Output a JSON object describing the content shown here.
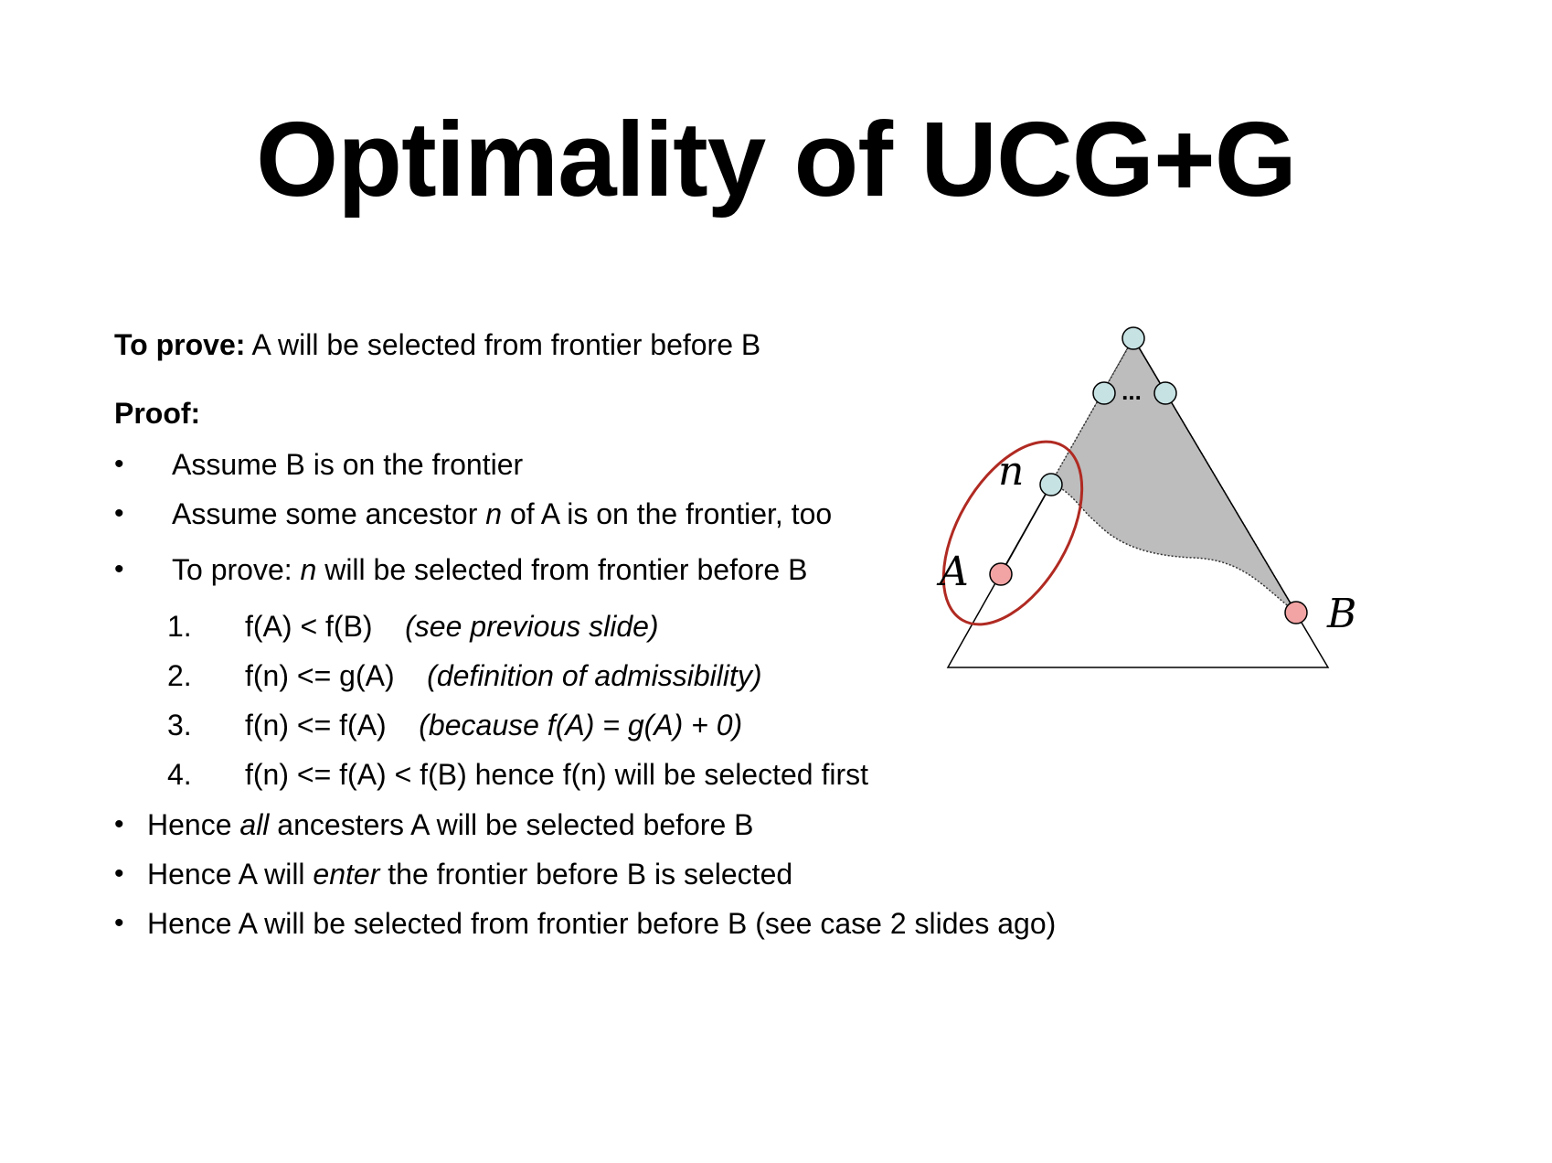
{
  "slide": {
    "title": "Optimality of UCG+G"
  },
  "to_prove": {
    "label": "To prove:",
    "text": " A will be selected from frontier before B"
  },
  "proof_label": "Proof:",
  "bullet_glyph": "•",
  "bullets": [
    {
      "text": "Assume B is on the frontier"
    },
    {
      "pre": "Assume some ancestor ",
      "em": "n",
      "post": " of A is on the frontier, too"
    },
    {
      "pre": "To prove: ",
      "em": "n",
      "post": " will be selected from frontier before B"
    }
  ],
  "steps": [
    {
      "num": "1.",
      "expr": "f(A) < f(B)",
      "note": "(see previous slide)"
    },
    {
      "num": "2.",
      "expr": "f(n) <= g(A)",
      "note": "(definition of admissibility)"
    },
    {
      "num": "3.",
      "expr": "f(n) <= f(A)",
      "note": "(because f(A) = g(A) + 0)"
    },
    {
      "num": "4.",
      "expr": "f(n) <= f(A) < f(B) hence f(n) will be selected first",
      "note": ""
    }
  ],
  "conclusions": [
    {
      "pre": "Hence ",
      "em": "all",
      "post": " ancesters A will be selected before B"
    },
    {
      "pre": "Hence A will ",
      "em": "enter",
      "post": " the frontier before B is selected"
    },
    {
      "pre": "Hence A will be selected from frontier before B (see case 2 slides ago)",
      "em": "",
      "post": ""
    }
  ],
  "diagram": {
    "labels": {
      "n": "n",
      "A": "A",
      "B": "B",
      "ellipsis": "..."
    },
    "colors": {
      "node_frontier": "#c6e2e3",
      "node_target": "#f2a3a3",
      "shaded_region": "#bdbdbd",
      "ellipse": "#b02a22",
      "line": "#000000"
    }
  }
}
